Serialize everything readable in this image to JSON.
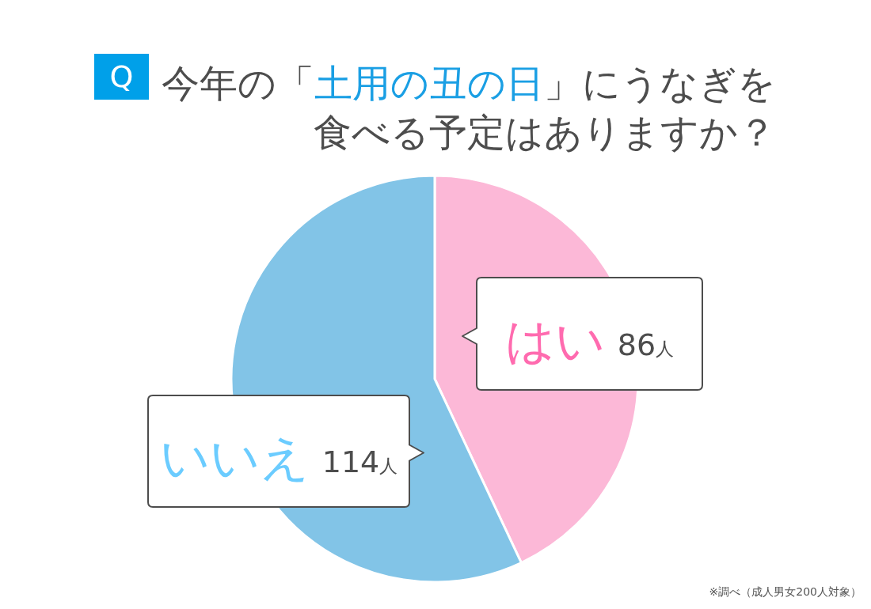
{
  "chart_data": {
    "type": "pie",
    "title": "今年の「土用の丑の日」にうなぎを食べる予定はありますか？",
    "categories": [
      "はい",
      "いいえ"
    ],
    "values": [
      86,
      114
    ],
    "colors": [
      "#fcb8d7",
      "#82c4e7"
    ],
    "value_labels": [
      "86人",
      "114人"
    ],
    "annotations": [
      "Q",
      "※調べ（成人男女200人対象）"
    ]
  }
}
